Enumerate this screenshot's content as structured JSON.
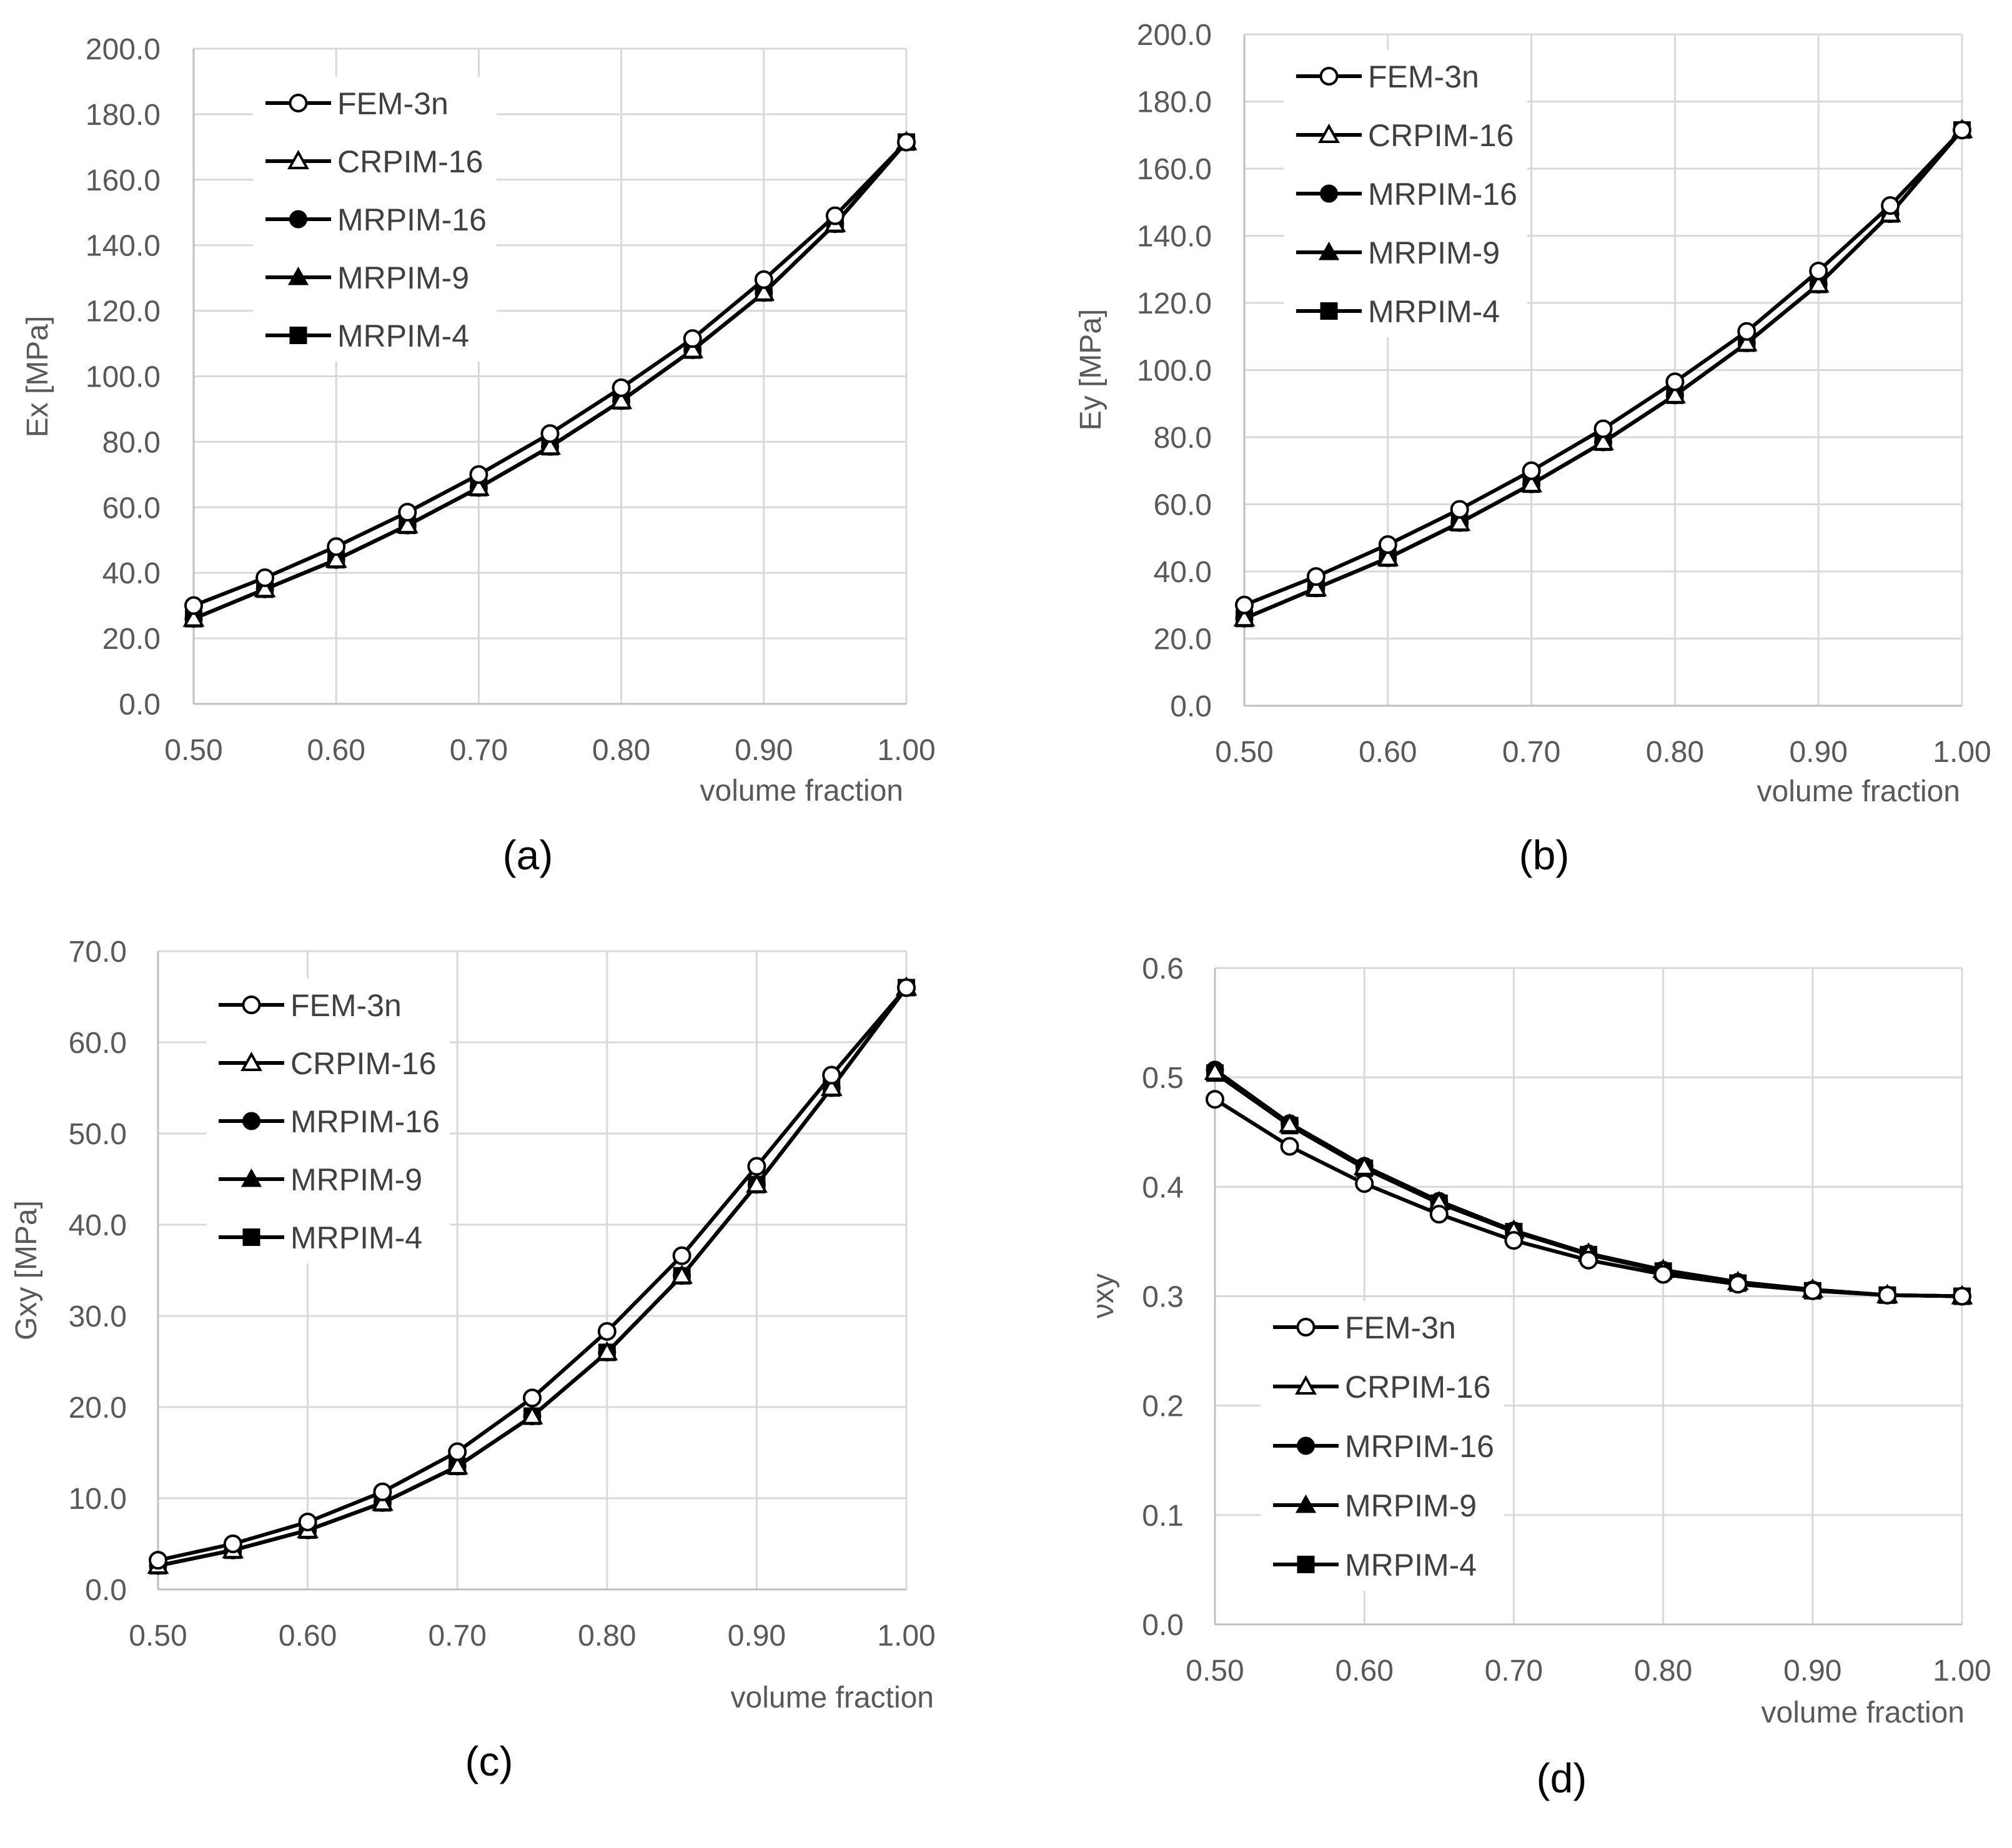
{
  "chart_data": [
    {
      "type": "line",
      "caption": "(a)",
      "xlabel": "volume fraction",
      "ylabel": "Ex [MPa]",
      "xlim": [
        0.5,
        1.0
      ],
      "ylim": [
        0,
        200
      ],
      "xticks": [
        "0.50",
        "0.60",
        "0.70",
        "0.80",
        "0.90",
        "1.00"
      ],
      "yticks": [
        "0.0",
        "20.0",
        "40.0",
        "60.0",
        "80.0",
        "100.0",
        "120.0",
        "140.0",
        "160.0",
        "180.0",
        "200.0"
      ],
      "grid": true,
      "legend_position": "top-left",
      "x": [
        0.5,
        0.55,
        0.6,
        0.65,
        0.7,
        0.75,
        0.8,
        0.85,
        0.9,
        0.95,
        1.0
      ],
      "series": [
        {
          "name": "FEM-3n",
          "marker": "circle-open",
          "values": [
            30.0,
            38.5,
            48.0,
            58.5,
            70.0,
            82.5,
            96.5,
            111.5,
            129.5,
            149.0,
            171.5
          ]
        },
        {
          "name": "CRPIM-16",
          "marker": "triangle-open",
          "values": [
            26.0,
            35.0,
            44.0,
            54.5,
            66.0,
            78.5,
            92.5,
            108.0,
            125.5,
            146.5,
            171.5
          ]
        },
        {
          "name": "MRPIM-16",
          "marker": "circle-filled",
          "values": [
            26.0,
            35.0,
            44.0,
            54.5,
            66.0,
            78.5,
            92.5,
            108.0,
            125.5,
            146.5,
            171.5
          ]
        },
        {
          "name": "MRPIM-9",
          "marker": "triangle-filled",
          "values": [
            26.0,
            35.0,
            44.0,
            54.5,
            66.0,
            78.5,
            92.5,
            108.0,
            125.5,
            146.5,
            171.5
          ]
        },
        {
          "name": "MRPIM-4",
          "marker": "square-filled",
          "values": [
            26.0,
            35.0,
            44.0,
            54.5,
            66.0,
            78.5,
            92.5,
            108.0,
            125.5,
            146.5,
            171.5
          ]
        }
      ]
    },
    {
      "type": "line",
      "caption": "(b)",
      "xlabel": "volume fraction",
      "ylabel": "Ey [MPa]",
      "xlim": [
        0.5,
        1.0
      ],
      "ylim": [
        0,
        200
      ],
      "xticks": [
        "0.50",
        "0.60",
        "0.70",
        "0.80",
        "0.90",
        "1.00"
      ],
      "yticks": [
        "0.0",
        "20.0",
        "40.0",
        "60.0",
        "80.0",
        "100.0",
        "120.0",
        "140.0",
        "160.0",
        "180.0",
        "200.0"
      ],
      "grid": true,
      "legend_position": "top-left",
      "x": [
        0.5,
        0.55,
        0.6,
        0.65,
        0.7,
        0.75,
        0.8,
        0.85,
        0.9,
        0.95,
        1.0
      ],
      "series": [
        {
          "name": "FEM-3n",
          "marker": "circle-open",
          "values": [
            30.0,
            38.5,
            48.0,
            58.5,
            70.0,
            82.5,
            96.5,
            111.5,
            129.5,
            149.0,
            171.5
          ]
        },
        {
          "name": "CRPIM-16",
          "marker": "triangle-open",
          "values": [
            26.0,
            35.0,
            44.0,
            54.5,
            66.0,
            78.5,
            92.5,
            108.0,
            125.5,
            146.5,
            171.5
          ]
        },
        {
          "name": "MRPIM-16",
          "marker": "circle-filled",
          "values": [
            26.0,
            35.0,
            44.0,
            54.5,
            66.0,
            78.5,
            92.5,
            108.0,
            125.5,
            146.5,
            171.5
          ]
        },
        {
          "name": "MRPIM-9",
          "marker": "triangle-filled",
          "values": [
            26.0,
            35.0,
            44.0,
            54.5,
            66.0,
            78.5,
            92.5,
            108.0,
            125.5,
            146.5,
            171.5
          ]
        },
        {
          "name": "MRPIM-4",
          "marker": "square-filled",
          "values": [
            26.0,
            35.0,
            44.0,
            54.5,
            66.0,
            78.5,
            92.5,
            108.0,
            125.5,
            146.5,
            171.5
          ]
        }
      ]
    },
    {
      "type": "line",
      "caption": "(c)",
      "xlabel": "volume fraction",
      "ylabel": "Gxy [MPa]",
      "xlim": [
        0.5,
        1.0
      ],
      "ylim": [
        0,
        70
      ],
      "xticks": [
        "0.50",
        "0.60",
        "0.70",
        "0.80",
        "0.90",
        "1.00"
      ],
      "yticks": [
        "0.0",
        "10.0",
        "20.0",
        "30.0",
        "40.0",
        "50.0",
        "60.0",
        "70.0"
      ],
      "grid": true,
      "legend_position": "top-left",
      "x": [
        0.5,
        0.55,
        0.6,
        0.65,
        0.7,
        0.75,
        0.8,
        0.85,
        0.9,
        0.95,
        1.0
      ],
      "series": [
        {
          "name": "FEM-3n",
          "marker": "circle-open",
          "values": [
            3.2,
            5.0,
            7.4,
            10.7,
            15.1,
            21.0,
            28.3,
            36.6,
            46.4,
            56.4,
            66.0
          ]
        },
        {
          "name": "CRPIM-16",
          "marker": "triangle-open",
          "values": [
            2.6,
            4.3,
            6.5,
            9.5,
            13.5,
            19.0,
            26.0,
            34.4,
            44.4,
            55.0,
            66.0
          ]
        },
        {
          "name": "MRPIM-16",
          "marker": "circle-filled",
          "values": [
            2.6,
            4.3,
            6.5,
            9.5,
            13.5,
            19.0,
            26.0,
            34.4,
            44.4,
            55.0,
            66.0
          ]
        },
        {
          "name": "MRPIM-9",
          "marker": "triangle-filled",
          "values": [
            2.6,
            4.3,
            6.5,
            9.5,
            13.5,
            19.0,
            26.0,
            34.4,
            44.4,
            55.0,
            66.0
          ]
        },
        {
          "name": "MRPIM-4",
          "marker": "square-filled",
          "values": [
            2.6,
            4.3,
            6.5,
            9.5,
            13.5,
            19.0,
            26.0,
            34.4,
            44.4,
            55.0,
            66.0
          ]
        }
      ]
    },
    {
      "type": "line",
      "caption": "(d)",
      "xlabel": "volume fraction",
      "ylabel": "νxy",
      "xlim": [
        0.5,
        1.0
      ],
      "ylim": [
        0,
        0.6
      ],
      "xticks": [
        "0.50",
        "0.60",
        "0.70",
        "0.80",
        "0.90",
        "1.00"
      ],
      "yticks": [
        "0.0",
        "0.1",
        "0.2",
        "0.3",
        "0.4",
        "0.5",
        "0.6"
      ],
      "grid": true,
      "legend_position": "bottom-left",
      "x": [
        0.5,
        0.55,
        0.6,
        0.65,
        0.7,
        0.75,
        0.8,
        0.85,
        0.9,
        0.95,
        1.0
      ],
      "series": [
        {
          "name": "FEM-3n",
          "marker": "circle-open",
          "values": [
            0.48,
            0.437,
            0.403,
            0.375,
            0.351,
            0.333,
            0.32,
            0.311,
            0.305,
            0.301,
            0.3
          ]
        },
        {
          "name": "CRPIM-16",
          "marker": "triangle-open",
          "values": [
            0.505,
            0.457,
            0.418,
            0.386,
            0.36,
            0.339,
            0.324,
            0.313,
            0.306,
            0.301,
            0.3
          ]
        },
        {
          "name": "MRPIM-16",
          "marker": "circle-filled",
          "values": [
            0.507,
            0.458,
            0.419,
            0.387,
            0.36,
            0.339,
            0.324,
            0.313,
            0.306,
            0.301,
            0.3
          ]
        },
        {
          "name": "MRPIM-9",
          "marker": "triangle-filled",
          "values": [
            0.505,
            0.457,
            0.418,
            0.386,
            0.36,
            0.339,
            0.324,
            0.313,
            0.306,
            0.301,
            0.3
          ]
        },
        {
          "name": "MRPIM-4",
          "marker": "square-filled",
          "values": [
            0.504,
            0.456,
            0.417,
            0.385,
            0.359,
            0.338,
            0.323,
            0.312,
            0.305,
            0.301,
            0.3
          ]
        }
      ]
    }
  ]
}
